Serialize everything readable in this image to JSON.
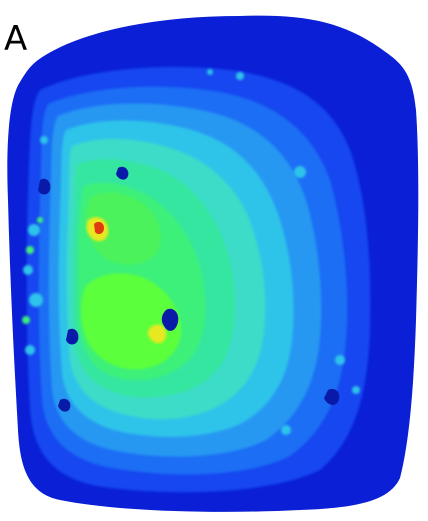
{
  "figure": {
    "panel_label": "A"
  },
  "colors": {
    "deep_blue": "#0a1fd6",
    "blue": "#1446f0",
    "mid_blue": "#1a6ef5",
    "light_blue": "#2598f2",
    "cyan": "#2fc4ea",
    "aqua": "#3cdcc8",
    "teal_green": "#34e6a0",
    "green": "#3ef07a",
    "bright_green": "#5cff3a",
    "yellow": "#e8e820",
    "red": "#e03a10"
  }
}
